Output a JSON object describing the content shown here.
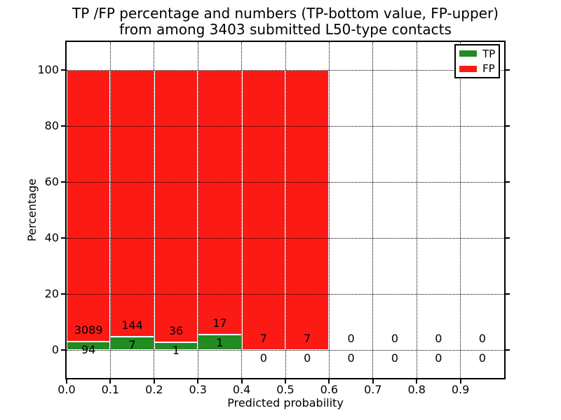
{
  "chart_data": {
    "type": "bar",
    "stacked": true,
    "title": "TP /FP percentage and numbers (TP-bottom value, FP-upper)\nfrom among 3403 submitted L50-type contacts",
    "xlabel": "Predicted probability",
    "ylabel": "Percentage",
    "total_contacts": 3403,
    "xlim": [
      0.0,
      1.0
    ],
    "ylim": [
      -10,
      110
    ],
    "x_tick_labels": [
      "0.0",
      "0.1",
      "0.2",
      "0.3",
      "0.4",
      "0.5",
      "0.6",
      "0.7",
      "0.8",
      "0.9"
    ],
    "y_ticks": [
      0,
      20,
      40,
      60,
      80,
      100
    ],
    "grid": {
      "style": "dotted",
      "color": "#000000",
      "axisbelow": false
    },
    "colors": {
      "tp": "#228b22",
      "fp": "#fc1a15",
      "bar_edge": "#ffffff"
    },
    "legend": [
      {
        "label": "TP",
        "color": "#228b22"
      },
      {
        "label": "FP",
        "color": "#fc1a15"
      }
    ],
    "legend_position": "upper right",
    "bins": [
      {
        "range": [
          0.0,
          0.1
        ],
        "tp_count": 94,
        "fp_count": 3089,
        "tp_pct": 2.95,
        "fp_pct": 97.05
      },
      {
        "range": [
          0.1,
          0.2
        ],
        "tp_count": 7,
        "fp_count": 144,
        "tp_pct": 4.64,
        "fp_pct": 95.36
      },
      {
        "range": [
          0.2,
          0.3
        ],
        "tp_count": 1,
        "fp_count": 36,
        "tp_pct": 2.7,
        "fp_pct": 97.3
      },
      {
        "range": [
          0.3,
          0.4
        ],
        "tp_count": 1,
        "fp_count": 17,
        "tp_pct": 5.56,
        "fp_pct": 94.44
      },
      {
        "range": [
          0.4,
          0.5
        ],
        "tp_count": 0,
        "fp_count": 7,
        "tp_pct": 0,
        "fp_pct": 100
      },
      {
        "range": [
          0.5,
          0.6
        ],
        "tp_count": 0,
        "fp_count": 7,
        "tp_pct": 0,
        "fp_pct": 100
      },
      {
        "range": [
          0.6,
          0.7
        ],
        "tp_count": 0,
        "fp_count": 0,
        "tp_pct": 0,
        "fp_pct": 0
      },
      {
        "range": [
          0.7,
          0.8
        ],
        "tp_count": 0,
        "fp_count": 0,
        "tp_pct": 0,
        "fp_pct": 0
      },
      {
        "range": [
          0.8,
          0.9
        ],
        "tp_count": 0,
        "fp_count": 0,
        "tp_pct": 0,
        "fp_pct": 0
      },
      {
        "range": [
          0.9,
          1.0
        ],
        "tp_count": 0,
        "fp_count": 0,
        "tp_pct": 0,
        "fp_pct": 0
      }
    ]
  }
}
